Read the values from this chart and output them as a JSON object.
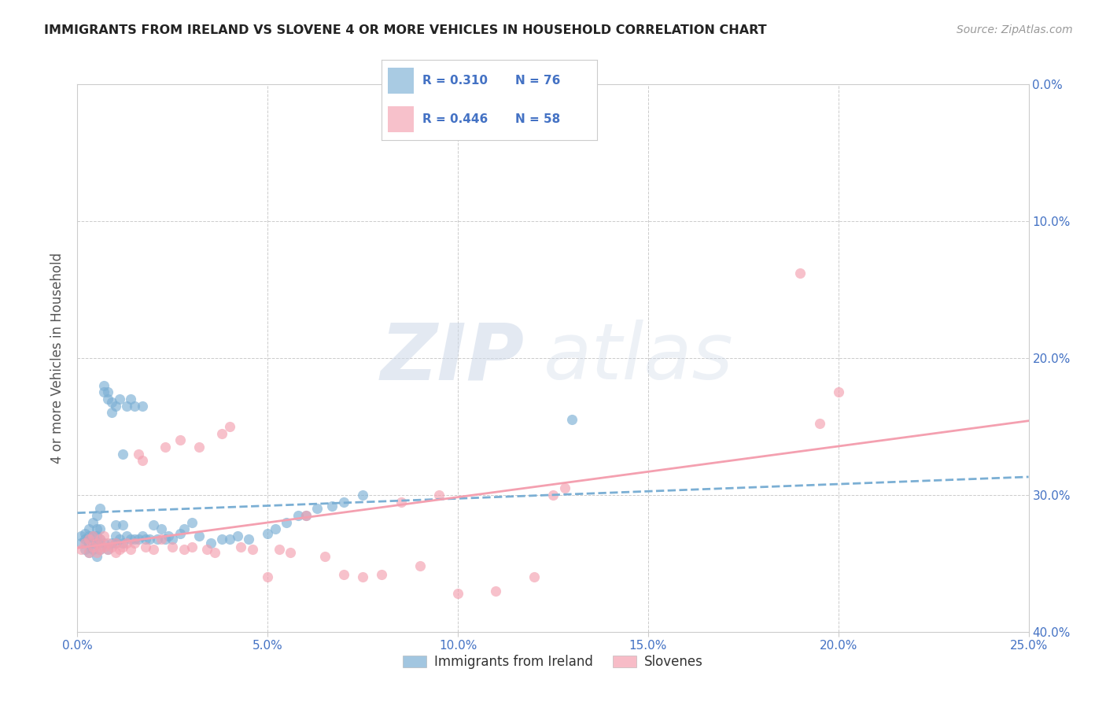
{
  "title": "IMMIGRANTS FROM IRELAND VS SLOVENE 4 OR MORE VEHICLES IN HOUSEHOLD CORRELATION CHART",
  "source": "Source: ZipAtlas.com",
  "ylabel": "4 or more Vehicles in Household",
  "xlim": [
    0.0,
    0.25
  ],
  "ylim": [
    0.0,
    0.4
  ],
  "xticks": [
    0.0,
    0.05,
    0.1,
    0.15,
    0.2,
    0.25
  ],
  "yticks": [
    0.0,
    0.1,
    0.2,
    0.3,
    0.4
  ],
  "xticklabels": [
    "0.0%",
    "5.0%",
    "10.0%",
    "15.0%",
    "20.0%",
    "25.0%"
  ],
  "yticklabels": [
    "0.0%",
    "10.0%",
    "20.0%",
    "30.0%",
    "40.0%"
  ],
  "ireland_color": "#7bafd4",
  "slovene_color": "#f4a0b0",
  "ireland_R": "0.310",
  "ireland_N": "76",
  "slovene_R": "0.446",
  "slovene_N": "58",
  "legend_label_ireland": "Immigrants from Ireland",
  "legend_label_slovene": "Slovenes",
  "watermark_zip": "ZIP",
  "watermark_atlas": "atlas",
  "background_color": "#ffffff",
  "grid_color": "#cccccc",
  "axis_color": "#4472c4",
  "ireland_scatter_x": [
    0.001,
    0.001,
    0.002,
    0.002,
    0.002,
    0.003,
    0.003,
    0.003,
    0.003,
    0.004,
    0.004,
    0.004,
    0.004,
    0.005,
    0.005,
    0.005,
    0.005,
    0.005,
    0.006,
    0.006,
    0.006,
    0.006,
    0.007,
    0.007,
    0.007,
    0.008,
    0.008,
    0.008,
    0.009,
    0.009,
    0.009,
    0.01,
    0.01,
    0.01,
    0.01,
    0.011,
    0.011,
    0.012,
    0.012,
    0.012,
    0.013,
    0.013,
    0.014,
    0.014,
    0.015,
    0.015,
    0.016,
    0.017,
    0.017,
    0.018,
    0.019,
    0.02,
    0.021,
    0.022,
    0.023,
    0.024,
    0.025,
    0.027,
    0.028,
    0.03,
    0.032,
    0.035,
    0.038,
    0.04,
    0.042,
    0.045,
    0.05,
    0.052,
    0.055,
    0.058,
    0.06,
    0.063,
    0.067,
    0.07,
    0.075,
    0.13
  ],
  "ireland_scatter_y": [
    0.065,
    0.07,
    0.06,
    0.068,
    0.072,
    0.058,
    0.065,
    0.07,
    0.075,
    0.06,
    0.065,
    0.07,
    0.08,
    0.055,
    0.065,
    0.07,
    0.075,
    0.085,
    0.06,
    0.068,
    0.075,
    0.09,
    0.065,
    0.175,
    0.18,
    0.06,
    0.17,
    0.175,
    0.065,
    0.16,
    0.168,
    0.065,
    0.07,
    0.078,
    0.165,
    0.068,
    0.17,
    0.065,
    0.078,
    0.13,
    0.07,
    0.165,
    0.068,
    0.17,
    0.068,
    0.165,
    0.068,
    0.07,
    0.165,
    0.068,
    0.068,
    0.078,
    0.068,
    0.075,
    0.068,
    0.07,
    0.068,
    0.072,
    0.075,
    0.08,
    0.07,
    0.065,
    0.068,
    0.068,
    0.07,
    0.068,
    0.072,
    0.075,
    0.08,
    0.085,
    0.085,
    0.09,
    0.092,
    0.095,
    0.1,
    0.155
  ],
  "slovene_scatter_x": [
    0.001,
    0.002,
    0.003,
    0.003,
    0.004,
    0.004,
    0.005,
    0.005,
    0.006,
    0.006,
    0.007,
    0.007,
    0.008,
    0.008,
    0.009,
    0.01,
    0.01,
    0.011,
    0.012,
    0.013,
    0.014,
    0.015,
    0.016,
    0.017,
    0.018,
    0.02,
    0.022,
    0.023,
    0.025,
    0.027,
    0.028,
    0.03,
    0.032,
    0.034,
    0.036,
    0.038,
    0.04,
    0.043,
    0.046,
    0.05,
    0.053,
    0.056,
    0.06,
    0.065,
    0.07,
    0.075,
    0.08,
    0.085,
    0.09,
    0.095,
    0.1,
    0.11,
    0.12,
    0.125,
    0.128,
    0.19,
    0.195,
    0.2
  ],
  "slovene_scatter_y": [
    0.06,
    0.065,
    0.058,
    0.068,
    0.062,
    0.07,
    0.058,
    0.065,
    0.06,
    0.068,
    0.062,
    0.07,
    0.06,
    0.065,
    0.062,
    0.058,
    0.065,
    0.06,
    0.062,
    0.065,
    0.06,
    0.065,
    0.13,
    0.125,
    0.062,
    0.06,
    0.068,
    0.135,
    0.062,
    0.14,
    0.06,
    0.062,
    0.135,
    0.06,
    0.058,
    0.145,
    0.15,
    0.062,
    0.06,
    0.04,
    0.06,
    0.058,
    0.085,
    0.055,
    0.042,
    0.04,
    0.042,
    0.095,
    0.048,
    0.1,
    0.028,
    0.03,
    0.04,
    0.1,
    0.105,
    0.262,
    0.152,
    0.175
  ]
}
